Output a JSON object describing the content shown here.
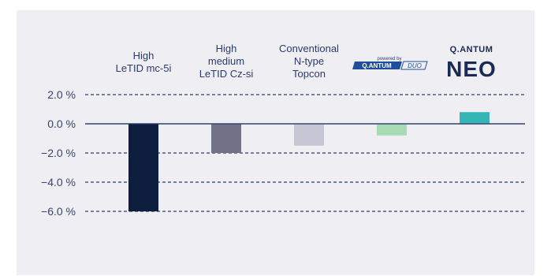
{
  "chart_data": {
    "type": "bar",
    "categories": [
      "High\nLeTID mc-5i",
      "High\nmedium\nLeTID Cz-si",
      "Conventional\nN-type\nTopcon",
      "Q.ANTUM DUO",
      "Q.ANTUM NEO"
    ],
    "values": [
      -6.0,
      -2.0,
      -1.5,
      -0.8,
      0.8
    ],
    "colors": [
      "#0d1e3f",
      "#727287",
      "#c6c5d3",
      "#a8dbb3",
      "#35b6b4"
    ],
    "title": "",
    "xlabel": "",
    "ylabel": "",
    "ylim": [
      -6.5,
      2.5
    ],
    "yticks": [
      2.0,
      0.0,
      -2.0,
      -4.0,
      -6.0
    ],
    "ytick_labels": [
      "2.0 %",
      "0.0 %",
      "−2.0 %",
      "−4.0 %",
      "−6.0 %"
    ],
    "grid": "dashed horizontal",
    "legend": "none"
  },
  "logos": {
    "duo": {
      "small_text": "powered by",
      "main_text": "Q.ANTUM",
      "suffix_text": "DUO"
    },
    "neo": {
      "top_text": "Q.ANTUM",
      "main_text": "NEO"
    }
  },
  "colors": {
    "background": "#efeff3",
    "text": "#2a3a6c",
    "zero_line": "#2a3a6c",
    "grid": "#2a3a6c"
  }
}
